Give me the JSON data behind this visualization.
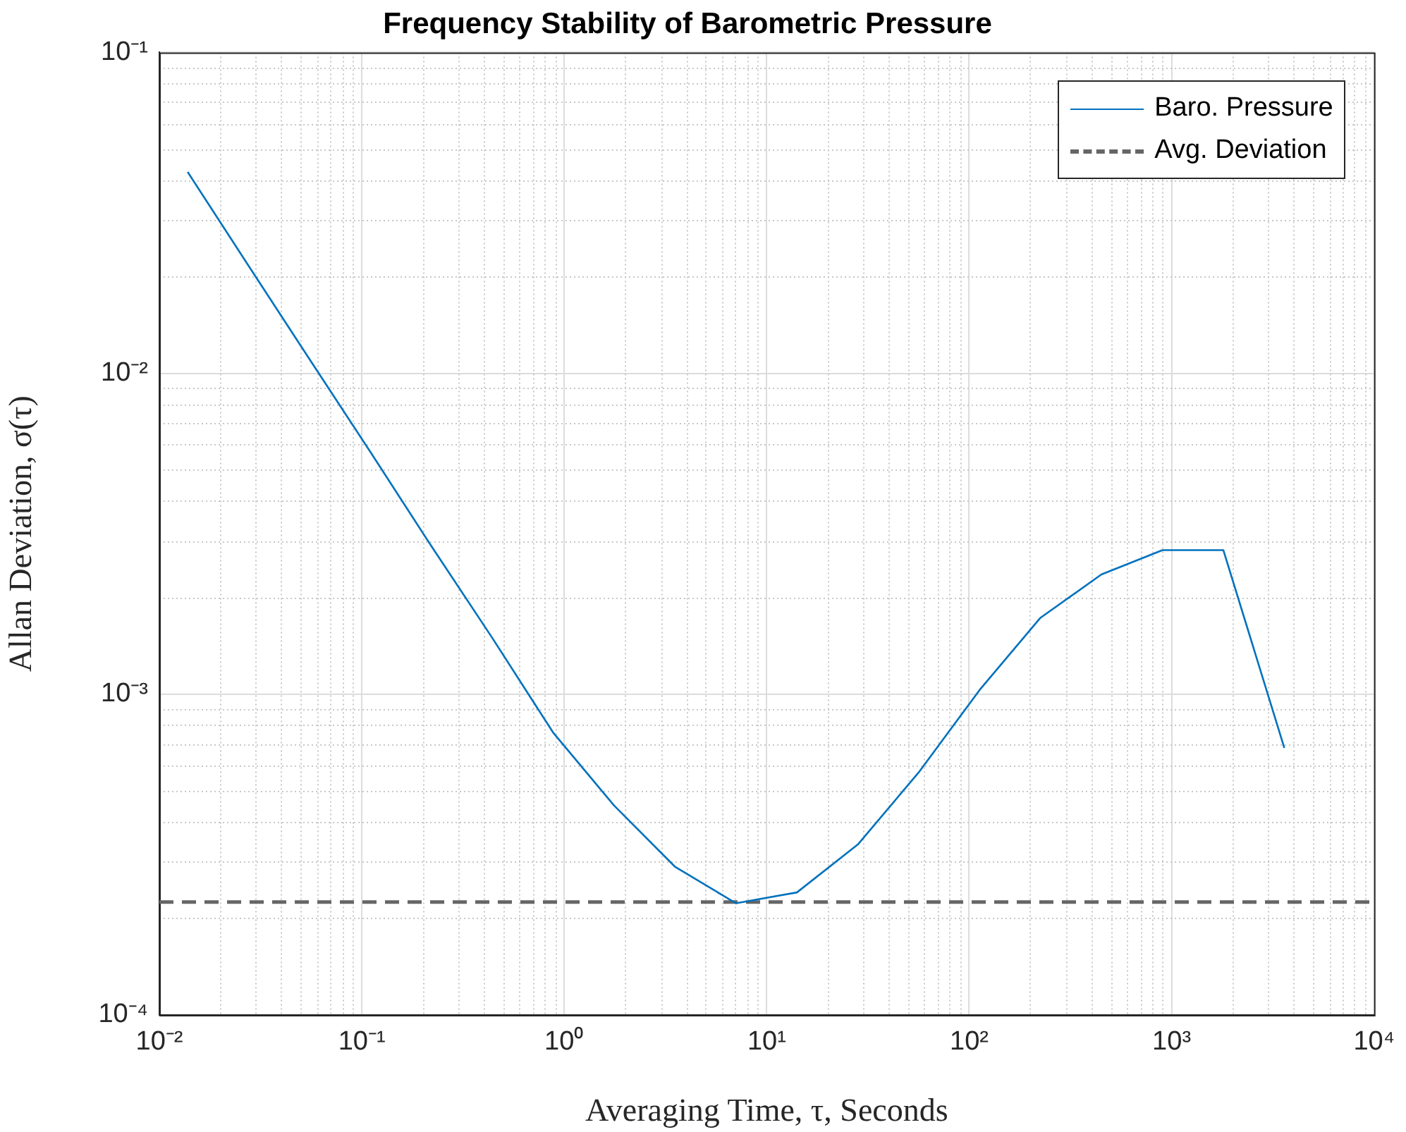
{
  "chart_data": {
    "type": "line",
    "title": "Frequency Stability of Barometric Pressure",
    "xlabel": "Averaging Time, τ, Seconds",
    "ylabel": "Allan Deviation, σ(τ)",
    "log": "xy",
    "grid": true,
    "legend": "top right",
    "marker": "none",
    "line_style": "solid",
    "xlim": [
      0.01,
      10000
    ],
    "ylim": [
      0.0001,
      0.1
    ],
    "xticks": [
      {
        "value": 0.01,
        "label": "10⁻²"
      },
      {
        "value": 0.1,
        "label": "10⁻¹"
      },
      {
        "value": 1,
        "label": "10⁰"
      },
      {
        "value": 10,
        "label": "10¹"
      },
      {
        "value": 100,
        "label": "10²"
      },
      {
        "value": 1000,
        "label": "10³"
      },
      {
        "value": 10000,
        "label": "10⁴"
      }
    ],
    "yticks": [
      {
        "value": 0.0001,
        "label": "10⁻⁴"
      },
      {
        "value": 0.001,
        "label": "10⁻³"
      },
      {
        "value": 0.01,
        "label": "10⁻²"
      },
      {
        "value": 0.1,
        "label": "10⁻¹"
      }
    ],
    "x": [
      0.0138,
      0.0275,
      0.055,
      0.11,
      0.22,
      0.44,
      0.88,
      1.76,
      3.52,
      7.04,
      14.1,
      28.2,
      56.3,
      112.6,
      225,
      450,
      901,
      1802,
      3604
    ],
    "series": [
      {
        "name": "Baro. Pressure",
        "color": "#0072bd",
        "values": [
          0.0424,
          0.0217,
          0.0111,
          0.0057,
          0.0029,
          0.0015,
          0.00076,
          0.00045,
          0.00029,
          0.000223,
          0.000241,
          0.00034,
          0.00057,
          0.00103,
          0.00173,
          0.00236,
          0.00281,
          0.00281,
          0.00068
        ]
      }
    ],
    "ref_lines": [
      {
        "axis": "y",
        "value": 0.000225,
        "label": "Avg. Deviation",
        "color": "#666666",
        "line_style": "dashed"
      }
    ]
  }
}
